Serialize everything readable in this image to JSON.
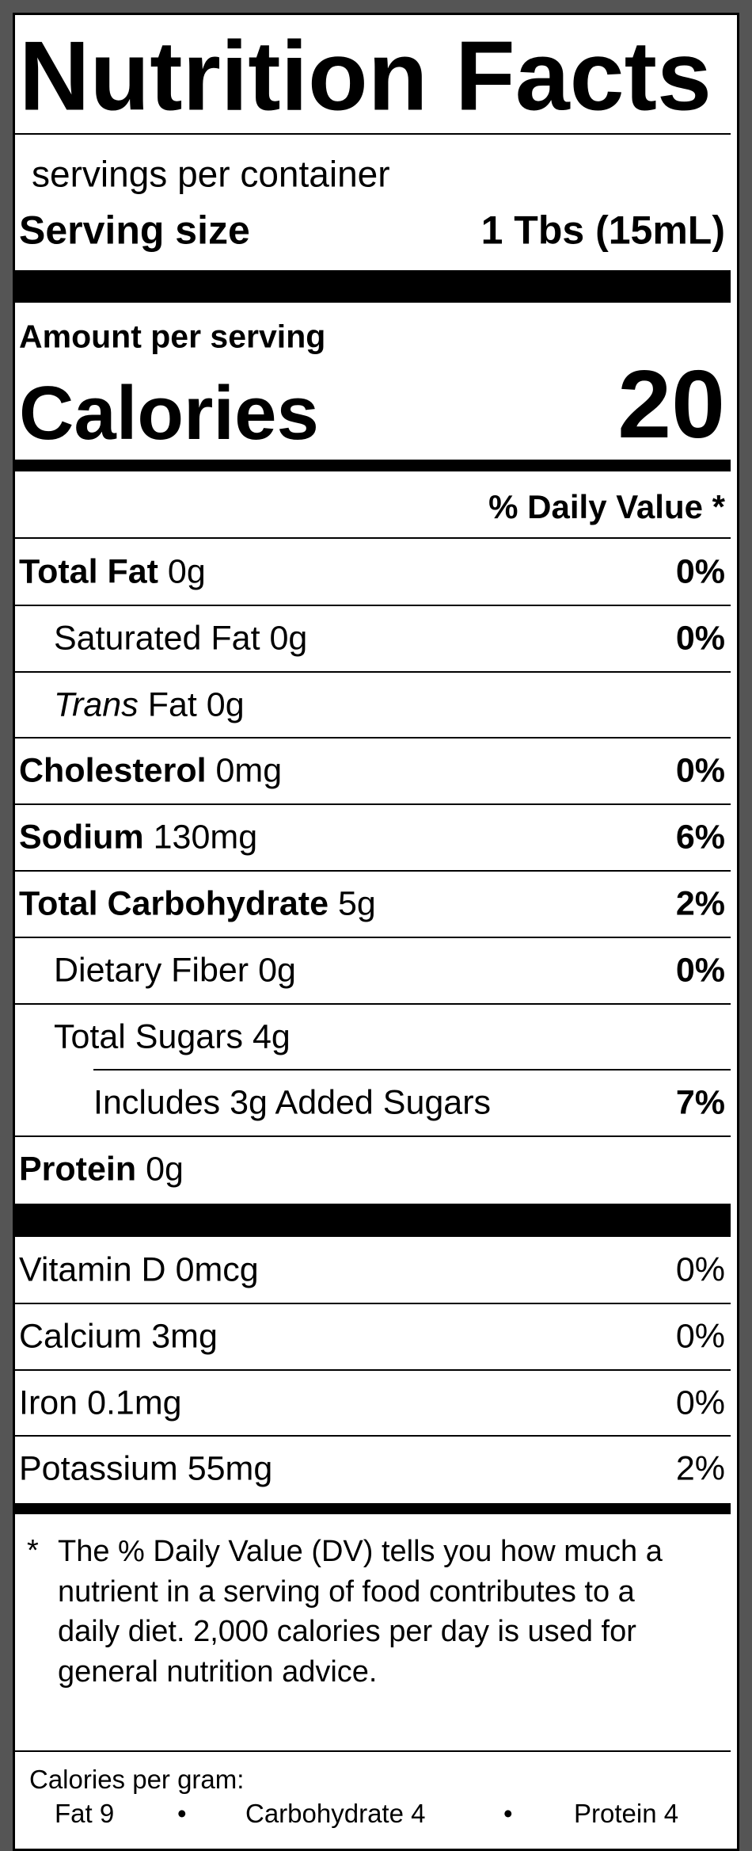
{
  "title": "Nutrition Facts",
  "servings": "servings per container",
  "serving_size": {
    "label": "Serving size",
    "value": "1 Tbs (15mL)"
  },
  "amount_per_serving": "Amount per serving",
  "calories": {
    "label": "Calories",
    "value": "20"
  },
  "daily_value_header": "% Daily Value *",
  "nutrients": [
    {
      "name": "Total Fat",
      "amount": "0g",
      "dv": "0%",
      "sub": [
        {
          "name": "Saturated Fat",
          "amount": "0g",
          "dv": "0%"
        },
        {
          "italic": "Trans",
          "name": "Fat",
          "amount": "0g"
        }
      ]
    },
    {
      "name": "Cholesterol",
      "amount": "0mg",
      "dv": "0%"
    },
    {
      "name": "Sodium",
      "amount": "130mg",
      "dv": "6%"
    },
    {
      "name": "Total Carbohydrate",
      "amount": "5g",
      "dv": "2%",
      "sub": [
        {
          "name": "Dietary Fiber",
          "amount": "0g",
          "dv": "0%"
        },
        {
          "name": "Total Sugars",
          "amount": "4g",
          "sub": [
            {
              "name": "Includes 3g Added Sugars",
              "dv": "7%"
            }
          ]
        }
      ]
    },
    {
      "name": "Protein",
      "amount": "0g"
    }
  ],
  "vitamins": [
    {
      "name": "Vitamin D",
      "amount": "0mcg",
      "dv": "0%"
    },
    {
      "name": "Calcium",
      "amount": "3mg",
      "dv": "0%"
    },
    {
      "name": "Iron",
      "amount": "0.1mg",
      "dv": "0%"
    },
    {
      "name": "Potassium",
      "amount": "55mg",
      "dv": "2%"
    }
  ],
  "footnote": {
    "marker": "*",
    "text": "The % Daily Value (DV) tells you how much a nutrient in a serving of food contributes to a daily diet. 2,000 calories per day is used for general nutrition advice."
  },
  "calories_per_gram": {
    "label": "Calories per gram:",
    "items": [
      "Fat 9",
      "Carbohydrate 4",
      "Protein 4"
    ]
  }
}
